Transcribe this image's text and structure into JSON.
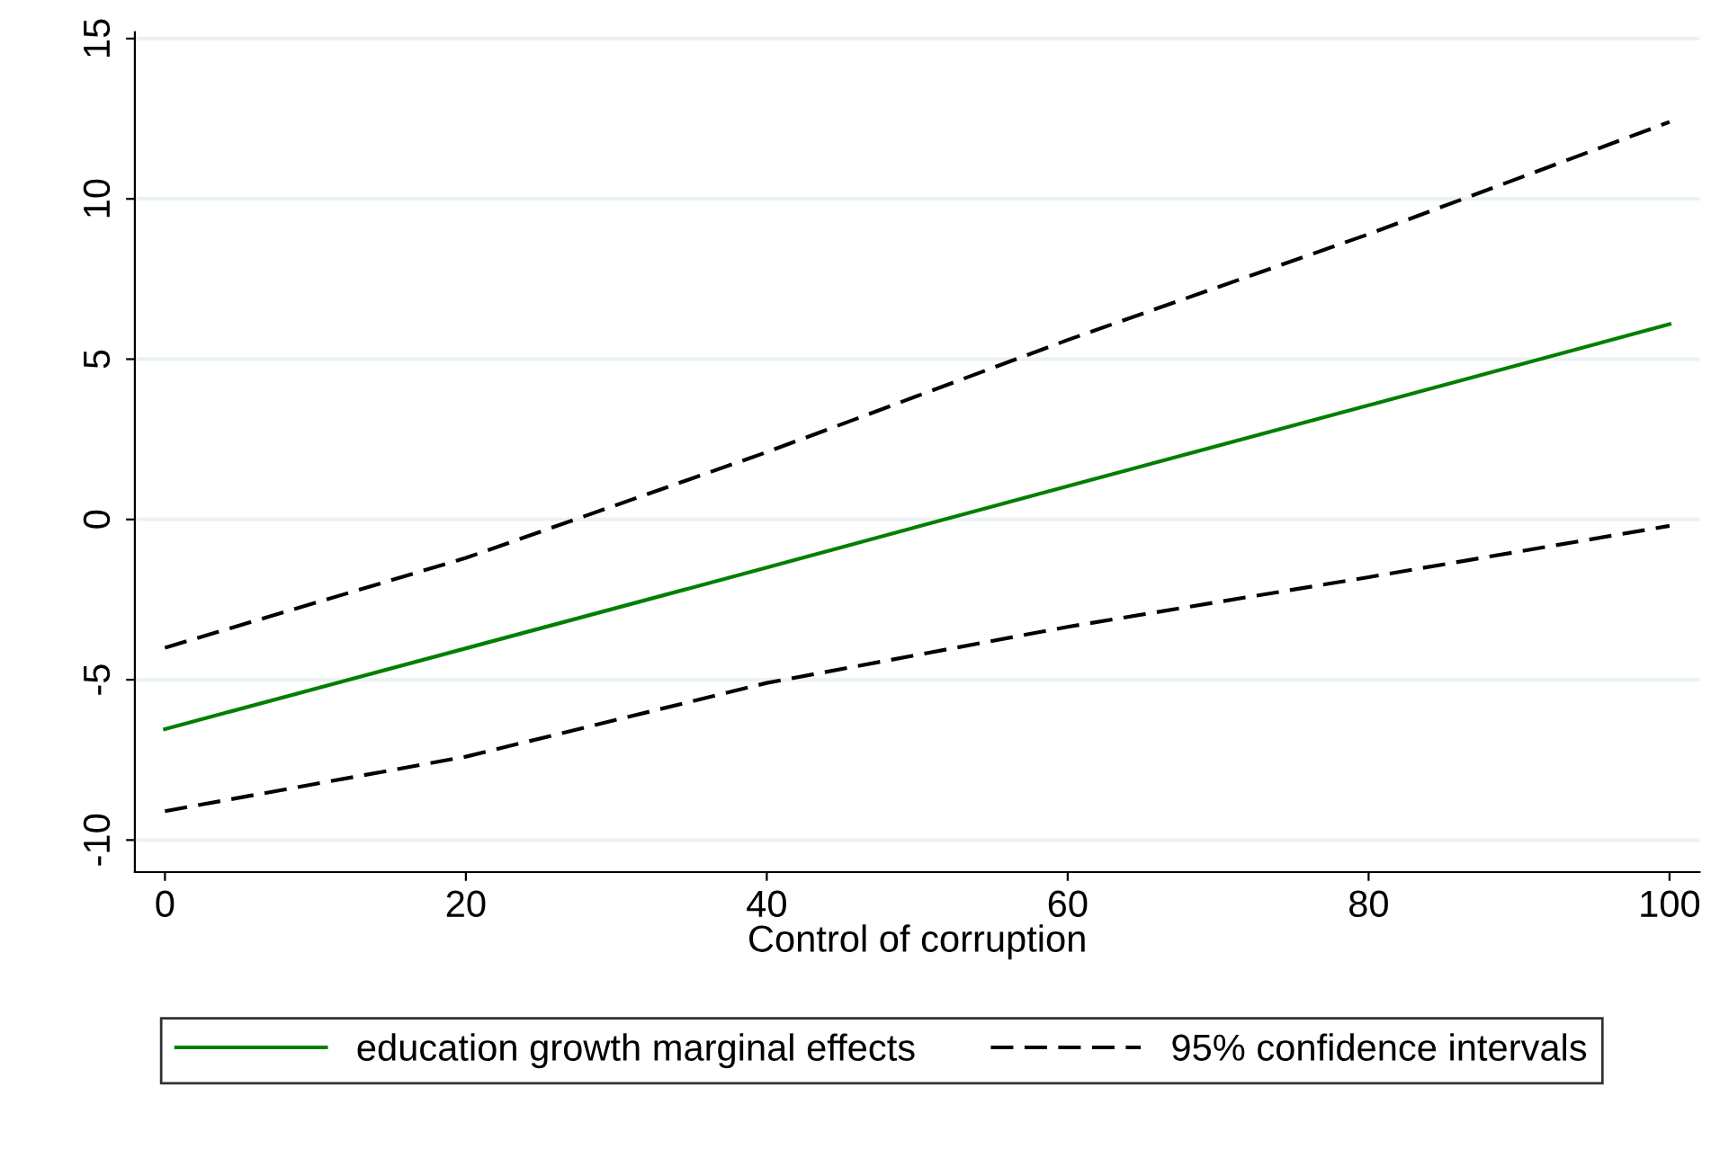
{
  "chart_data": {
    "type": "line",
    "xlabel": "Control of corruption",
    "x": [
      0,
      20,
      40,
      60,
      80,
      100
    ],
    "series": [
      {
        "name": "education growth marginal effects",
        "color": "#007f00",
        "line_style": "solid",
        "values": [
          -6.54,
          -4.02,
          -1.5,
          1.04,
          3.56,
          6.09
        ]
      },
      {
        "name": "95% confidence intervals",
        "color": "#000000",
        "line_style": "dashed",
        "values": [
          -4.0,
          -1.2,
          2.1,
          5.6,
          8.9,
          12.4
        ]
      },
      {
        "color": "#000000",
        "line_style": "dashed",
        "values": [
          -9.1,
          -7.4,
          -5.1,
          -3.35,
          -1.8,
          -0.2
        ]
      }
    ],
    "xlim": [
      -2,
      102
    ],
    "xticks": [
      0,
      20,
      40,
      60,
      80,
      100
    ],
    "ylim": [
      -11,
      15.2
    ],
    "yticks": [
      -10,
      -5,
      0,
      5,
      10,
      15
    ],
    "grid": "y",
    "legend": "bottom",
    "marker": "none"
  }
}
